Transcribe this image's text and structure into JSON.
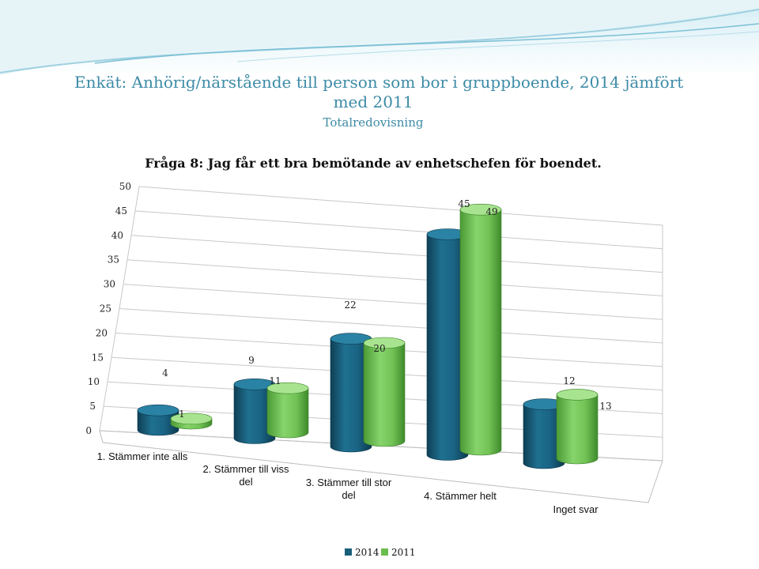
{
  "header": {
    "title_line1": "Enkät: Anhörig/närstående till person som bor i gruppboende, 2014 jämfört",
    "title_line2": "med 2011",
    "subtitle": "Totalredovisning"
  },
  "colors": {
    "title": "#3d8ba6",
    "series_2014": "#1a5f7a",
    "series_2011": "#6cbd4f",
    "swoosh": "#bfe3ee"
  },
  "chart_data": {
    "type": "bar",
    "title": "Fråga 8: Jag får ett bra bemötande av enhetschefen för boendet.",
    "categories": [
      [
        "1. Stämmer inte alls"
      ],
      [
        "2. Stämmer till viss",
        "del"
      ],
      [
        "3. Stämmer till stor",
        "del"
      ],
      [
        "4. Stämmer helt"
      ],
      [
        "Inget svar"
      ]
    ],
    "series": [
      {
        "name": "2014",
        "values": [
          4,
          11,
          22,
          45,
          12
        ]
      },
      {
        "name": "2011",
        "values": [
          1,
          9,
          20,
          49,
          13
        ]
      }
    ],
    "ylim": [
      0,
      50
    ],
    "yticks": [
      0,
      5,
      10,
      15,
      20,
      25,
      30,
      35,
      40,
      45,
      50
    ],
    "grid": true,
    "legend_position": "bottom"
  }
}
